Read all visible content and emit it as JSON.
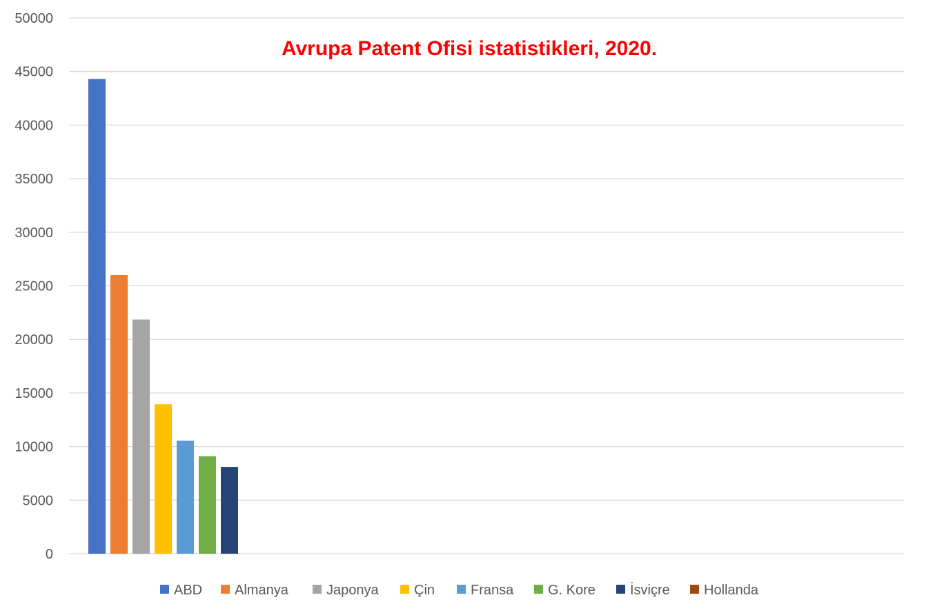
{
  "chart_data": {
    "type": "bar",
    "title": "Avrupa Patent Ofisi istatistikleri, 2020.",
    "xlabel": "",
    "ylabel": "",
    "ylim": [
      0,
      50000
    ],
    "y_ticks": [
      "0",
      "5000",
      "10000",
      "15000",
      "20000",
      "25000",
      "30000",
      "35000",
      "40000",
      "45000",
      "50000"
    ],
    "grid": true,
    "legend_position": "bottom",
    "series": [
      {
        "name": "ABD",
        "value": 44300,
        "color": "#4472c4"
      },
      {
        "name": "Almanya",
        "value": 26000,
        "color": "#ed7d31"
      },
      {
        "name": "Japonya",
        "value": 21850,
        "color": "#a5a5a5"
      },
      {
        "name": "Çin",
        "value": 13950,
        "color": "#ffc000"
      },
      {
        "name": "Fransa",
        "value": 10550,
        "color": "#5b9bd5"
      },
      {
        "name": "G. Kore",
        "value": 9100,
        "color": "#70ad47"
      },
      {
        "name": "İsviçre",
        "value": 8100,
        "color": "#264478"
      },
      {
        "name": "Hollanda",
        "value": 0,
        "color": "#9e480e"
      }
    ],
    "title_color": "#ff0000"
  }
}
